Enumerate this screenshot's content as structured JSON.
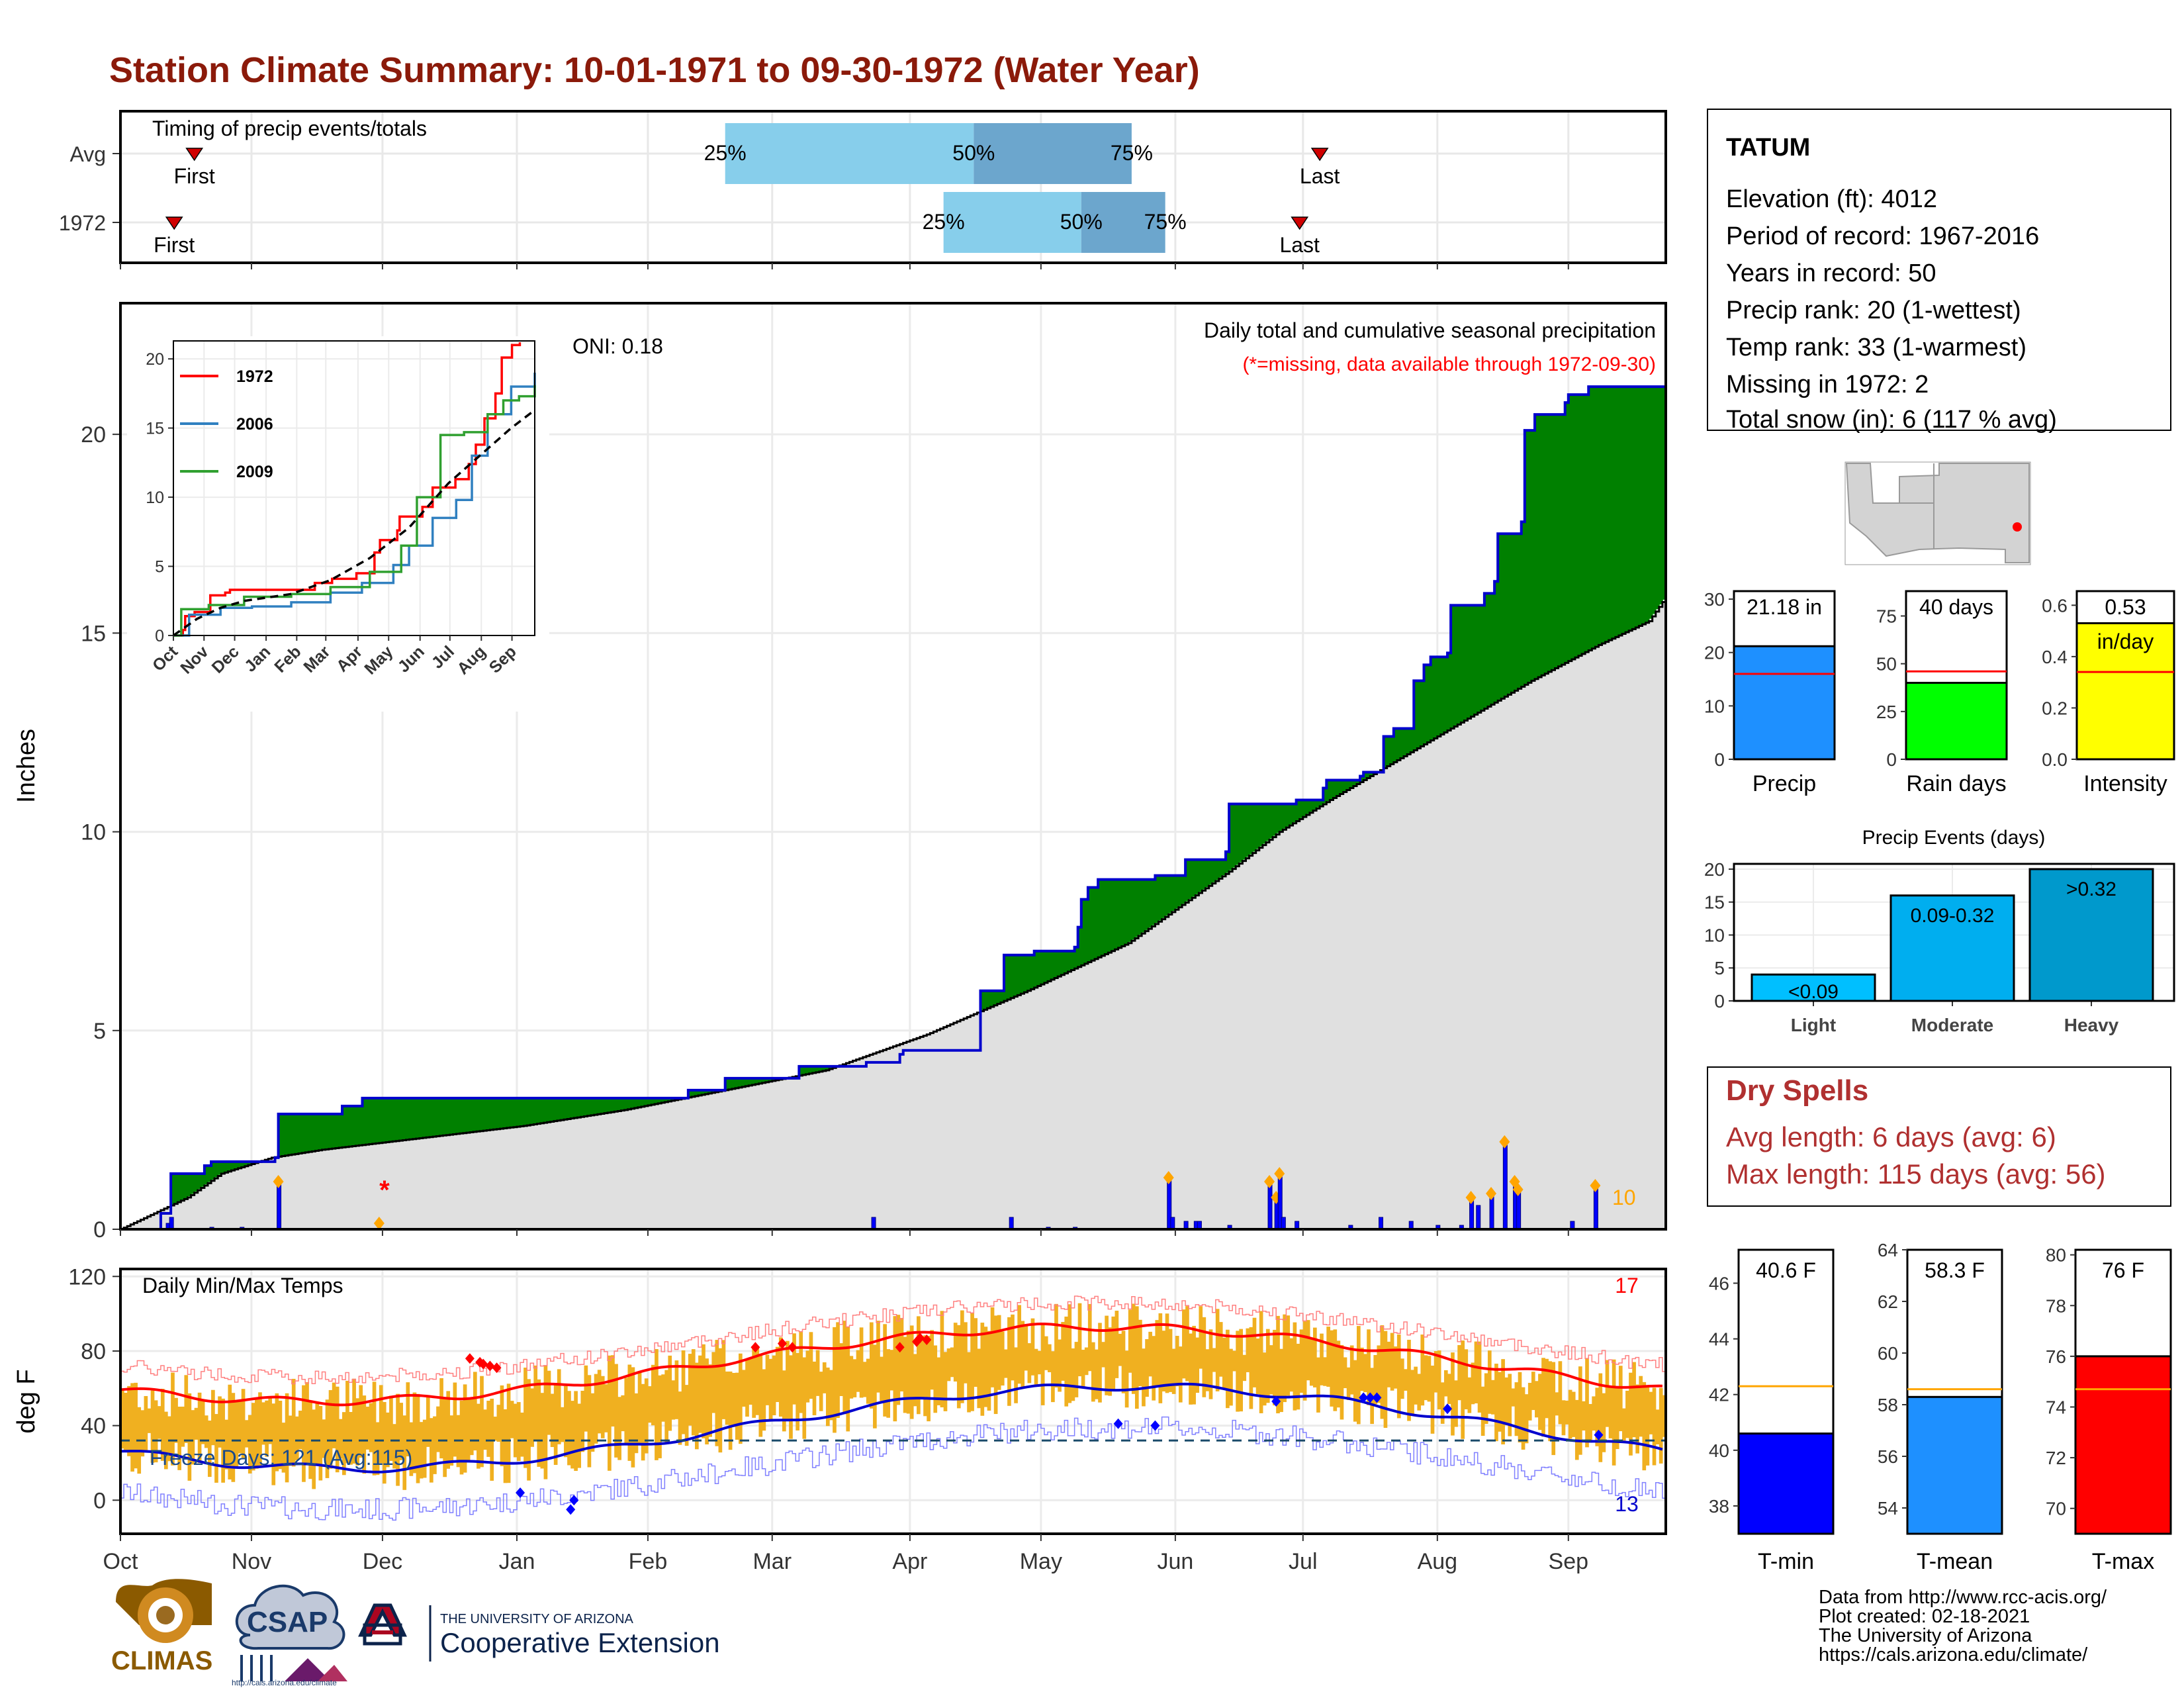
{
  "title": "Station Climate Summary: 10-01-1971 to 09-30-1972 (Water Year)",
  "colors": {
    "title": "#8B1A0A",
    "wetter": "#008000",
    "drier": "#8B5A00",
    "avg_area": "#E0E0E0",
    "cum_line": "#0000CD",
    "daily_bar": "#0000FF",
    "missing": "#FF0000",
    "q25": "#87CEEB",
    "q50": "#6CA6CD",
    "temp_bar": "#F0B020",
    "tmax_line": "#FF0000",
    "tmin_line": "#0000CD",
    "precip_bar": "#1E90FF",
    "raindays_bar": "#00FF00",
    "intensity_bar": "#FFFF00",
    "light_bar": "#00BFFF",
    "moderate_bar": "#00AEEF",
    "heavy_bar": "#0099CC",
    "dry_spells": "#B03030",
    "tmin_bar": "#0000FF",
    "tmean_bar": "#1E90FF",
    "tmax_bar": "#FF0000"
  },
  "timing": {
    "title": "Timing of precip events/totals",
    "rows": [
      {
        "label": "Avg",
        "first_day": 22,
        "q25_day": 180,
        "q50_day": 254,
        "q75_day": 301,
        "last_day": 357,
        "first_label": "First",
        "last_label": "Last",
        "q25_label": "25%",
        "q50_label": "50%",
        "q75_label": "75%"
      },
      {
        "label": "1972",
        "first_day": 16,
        "q25_day": 245,
        "q50_day": 286,
        "q75_day": 311,
        "last_day": 351,
        "first_label": "First",
        "last_label": "Last",
        "q25_label": "25%",
        "q50_label": "50%",
        "q75_label": "75%"
      }
    ]
  },
  "main_chart": {
    "ylabel": "Inches",
    "oni": "ONI: 0.18",
    "subtitle1": "Daily total and cumulative seasonal precipitation",
    "subtitle2": "(*=missing, data available through 1972-09-30)",
    "yticks": [
      0,
      5,
      10,
      15,
      20
    ],
    "ymax": 23.3,
    "max_daily_label": "10",
    "missing_marker": "*",
    "cum_1972": [
      [
        0,
        0
      ],
      [
        12,
        0.4
      ],
      [
        15,
        1.4
      ],
      [
        25,
        1.6
      ],
      [
        27,
        1.7
      ],
      [
        46,
        1.8
      ],
      [
        47,
        2.9
      ],
      [
        66,
        3.1
      ],
      [
        72,
        3.3
      ],
      [
        165,
        3.3
      ],
      [
        169,
        3.5
      ],
      [
        179,
        3.5
      ],
      [
        180,
        3.8
      ],
      [
        190,
        3.8
      ],
      [
        201,
        3.8
      ],
      [
        202,
        4.1
      ],
      [
        221,
        4.1
      ],
      [
        222,
        4.2
      ],
      [
        232,
        4.4
      ],
      [
        233,
        4.5
      ],
      [
        234,
        4.5
      ],
      [
        255,
        4.5
      ],
      [
        256,
        6.0
      ],
      [
        263,
        6.9
      ],
      [
        272,
        7.0
      ],
      [
        273,
        7.0
      ],
      [
        284,
        7.1
      ],
      [
        285,
        7.6
      ],
      [
        286,
        8.3
      ],
      [
        288,
        8.6
      ],
      [
        291,
        8.8
      ],
      [
        308,
        8.9
      ],
      [
        317,
        9.3
      ],
      [
        329,
        9.5
      ],
      [
        330,
        10.7
      ],
      [
        350,
        10.8
      ],
      [
        358,
        11.1
      ],
      [
        359,
        11.3
      ],
      [
        369,
        11.4
      ],
      [
        370,
        11.5
      ],
      [
        375,
        11.5
      ],
      [
        376,
        12.4
      ],
      [
        379,
        12.6
      ],
      [
        384,
        12.6
      ],
      [
        385,
        13.8
      ],
      [
        388,
        14.2
      ],
      [
        390,
        14.4
      ],
      [
        395,
        14.5
      ],
      [
        396,
        15.7
      ],
      [
        406,
        16.0
      ],
      [
        409,
        16.3
      ],
      [
        410,
        17.5
      ],
      [
        417,
        17.8
      ],
      [
        418,
        20.1
      ],
      [
        421,
        20.5
      ],
      [
        430,
        20.8
      ],
      [
        431,
        21.0
      ],
      [
        437,
        21.2
      ],
      [
        441,
        21.2
      ],
      [
        442,
        21.2
      ],
      [
        460,
        21.2
      ]
    ],
    "avg_points": [
      [
        0,
        0
      ],
      [
        20,
        0.8
      ],
      [
        30,
        1.4
      ],
      [
        45,
        1.8
      ],
      [
        60,
        2.0
      ],
      [
        90,
        2.3
      ],
      [
        120,
        2.6
      ],
      [
        150,
        3.0
      ],
      [
        180,
        3.5
      ],
      [
        210,
        4.0
      ],
      [
        240,
        4.9
      ],
      [
        270,
        6.0
      ],
      [
        300,
        7.2
      ],
      [
        330,
        9.0
      ],
      [
        345,
        10.0
      ],
      [
        360,
        10.8
      ],
      [
        380,
        11.8
      ],
      [
        400,
        12.8
      ],
      [
        420,
        13.8
      ],
      [
        440,
        14.7
      ],
      [
        455,
        15.3
      ],
      [
        460,
        15.9
      ]
    ],
    "daily_precip": [
      [
        14,
        0.15
      ],
      [
        15,
        0.3
      ],
      [
        27,
        0.05
      ],
      [
        36,
        0.05
      ],
      [
        47,
        1.2
      ],
      [
        224,
        0.3
      ],
      [
        265,
        0.3
      ],
      [
        276,
        0.05
      ],
      [
        284,
        0.05
      ],
      [
        312,
        1.3
      ],
      [
        313,
        0.3
      ],
      [
        317,
        0.2
      ],
      [
        320,
        0.2
      ],
      [
        321,
        0.2
      ],
      [
        330,
        0.1
      ],
      [
        342,
        1.2
      ],
      [
        344,
        0.8
      ],
      [
        345,
        1.4
      ],
      [
        346,
        0.3
      ],
      [
        350,
        0.2
      ],
      [
        366,
        0.1
      ],
      [
        375,
        0.3
      ],
      [
        384,
        0.2
      ],
      [
        392,
        0.1
      ],
      [
        399,
        0.1
      ],
      [
        402,
        0.8
      ],
      [
        404,
        0.6
      ],
      [
        408,
        0.9
      ],
      [
        412,
        2.2
      ],
      [
        415,
        1.2
      ],
      [
        416,
        1.0
      ],
      [
        432,
        0.2
      ],
      [
        439,
        1.1
      ]
    ]
  },
  "inset": {
    "yticks": [
      0,
      5,
      10,
      15,
      20
    ],
    "xticks": [
      "Oct",
      "Nov",
      "Dec",
      "Jan",
      "Feb",
      "Mar",
      "Apr",
      "May",
      "Jun",
      "Jul",
      "Aug",
      "Sep"
    ],
    "ymax": 21.3,
    "series": [
      {
        "name": "1972",
        "color": "#FF0000",
        "points": [
          [
            0,
            0
          ],
          [
            12,
            0.4
          ],
          [
            15,
            1.4
          ],
          [
            27,
            1.7
          ],
          [
            47,
            2.9
          ],
          [
            66,
            3.1
          ],
          [
            72,
            3.3
          ],
          [
            165,
            3.3
          ],
          [
            180,
            3.8
          ],
          [
            202,
            4.1
          ],
          [
            233,
            4.5
          ],
          [
            256,
            6.0
          ],
          [
            263,
            6.9
          ],
          [
            285,
            7.6
          ],
          [
            288,
            8.6
          ],
          [
            317,
            9.3
          ],
          [
            330,
            10.7
          ],
          [
            359,
            11.3
          ],
          [
            376,
            12.4
          ],
          [
            385,
            13.8
          ],
          [
            396,
            15.7
          ],
          [
            410,
            17.5
          ],
          [
            418,
            20.1
          ],
          [
            431,
            21.0
          ],
          [
            441,
            21.2
          ]
        ]
      },
      {
        "name": "2006",
        "color": "#3080C0",
        "points": [
          [
            0,
            0
          ],
          [
            20,
            1.5
          ],
          [
            60,
            2.0
          ],
          [
            100,
            2.1
          ],
          [
            150,
            2.4
          ],
          [
            200,
            3.1
          ],
          [
            240,
            3.8
          ],
          [
            280,
            5.1
          ],
          [
            300,
            6.5
          ],
          [
            330,
            8.5
          ],
          [
            360,
            9.8
          ],
          [
            380,
            13.0
          ],
          [
            400,
            16.0
          ],
          [
            430,
            18.0
          ],
          [
            460,
            19.0
          ]
        ]
      },
      {
        "name": "2009",
        "color": "#30A030",
        "points": [
          [
            0,
            0
          ],
          [
            10,
            1.9
          ],
          [
            45,
            2.2
          ],
          [
            90,
            2.8
          ],
          [
            150,
            3.0
          ],
          [
            200,
            3.5
          ],
          [
            250,
            4.6
          ],
          [
            290,
            6.5
          ],
          [
            310,
            10.0
          ],
          [
            340,
            14.5
          ],
          [
            370,
            14.7
          ],
          [
            400,
            16.0
          ],
          [
            420,
            17.0
          ],
          [
            440,
            17.3
          ],
          [
            460,
            18.1
          ]
        ]
      }
    ],
    "avg": {
      "name": "avg",
      "color": "#000000",
      "points": [
        [
          0,
          0
        ],
        [
          30,
          1.2
        ],
        [
          60,
          2.0
        ],
        [
          90,
          2.5
        ],
        [
          150,
          3.0
        ],
        [
          200,
          4.0
        ],
        [
          250,
          5.6
        ],
        [
          300,
          7.8
        ],
        [
          350,
          11.0
        ],
        [
          400,
          13.5
        ],
        [
          430,
          15.0
        ],
        [
          460,
          16.3
        ]
      ]
    }
  },
  "temp_chart": {
    "ylabel": "deg F",
    "title": "Daily Min/Max Temps",
    "yticks": [
      0,
      40,
      80,
      120
    ],
    "freeze_label": "Freeze Days: 121 (Avg:115)",
    "freeze_level": 32,
    "record_high_count": "17",
    "record_low_count": "13"
  },
  "x_months": [
    "Oct",
    "Nov",
    "Dec",
    "Jan",
    "Feb",
    "Mar",
    "Apr",
    "May",
    "Jun",
    "Jul",
    "Aug",
    "Sep"
  ],
  "station": {
    "name": "TATUM",
    "lines": [
      "Elevation (ft): 4012",
      "Period of record: 1967-2016",
      "Years in record: 50",
      "Precip rank: 20 (1-wettest)",
      "Temp rank: 33 (1-warmest)",
      "Missing in 1972: 2",
      "Total snow (in): 6 (117 % avg)"
    ]
  },
  "bar_stats": [
    {
      "label": "Precip",
      "value_label": "21.18 in",
      "value": 21.18,
      "avg": 16.0,
      "ymax": 31.5,
      "yticks": [
        0,
        10,
        20,
        30
      ]
    },
    {
      "label": "Rain days",
      "value_label": "40 days",
      "value": 40,
      "avg": 46,
      "ymax": 88,
      "yticks": [
        0,
        25,
        50,
        75
      ]
    },
    {
      "label": "Intensity",
      "value_label": "0.53",
      "value_label2": "in/day",
      "value": 0.53,
      "avg": 0.34,
      "ymax": 0.655,
      "yticks": [
        "0.0",
        "0.2",
        "0.4",
        "0.6"
      ]
    }
  ],
  "precip_events": {
    "title": "Precip Events (days)",
    "yticks": [
      0,
      5,
      10,
      15,
      20
    ],
    "ymax": 20.8,
    "categories": [
      "Light",
      "Moderate",
      "Heavy"
    ],
    "values": [
      4,
      16,
      20
    ],
    "value_labels": [
      "<0.09",
      "0.09-0.32",
      ">0.32"
    ]
  },
  "dry_spells": {
    "title": "Dry Spells",
    "avg_line": "Avg length: 6 days (avg: 6)",
    "max_line": "Max length: 115 days (avg: 56)"
  },
  "temp_stats": [
    {
      "label": "T-min",
      "value_label": "40.6 F",
      "value": 40.6,
      "avg": 42.3,
      "ymin": 37,
      "ymax": 47.2,
      "yticks": [
        38,
        40,
        42,
        44,
        46
      ]
    },
    {
      "label": "T-mean",
      "value_label": "58.3 F",
      "value": 58.3,
      "avg": 58.6,
      "ymin": 53,
      "ymax": 64.0,
      "yticks": [
        54,
        56,
        58,
        60,
        62,
        64
      ]
    },
    {
      "label": "T-max",
      "value_label": "76 F",
      "value": 76,
      "avg": 74.7,
      "ymin": 69,
      "ymax": 80.2,
      "yticks": [
        70,
        72,
        74,
        76,
        78,
        80
      ]
    }
  ],
  "footer": {
    "lines": [
      "Data from http://www.rcc-acis.org/",
      "Plot created: 02-18-2021",
      "The University of Arizona",
      "https://cals.arizona.edu/climate/"
    ],
    "climas": "CLIMAS",
    "csap": "CSAP",
    "csap_url": "http://cals.arizona.edu/climate",
    "ua_small": "THE UNIVERSITY OF ARIZONA",
    "ua_big": "Cooperative Extension"
  }
}
